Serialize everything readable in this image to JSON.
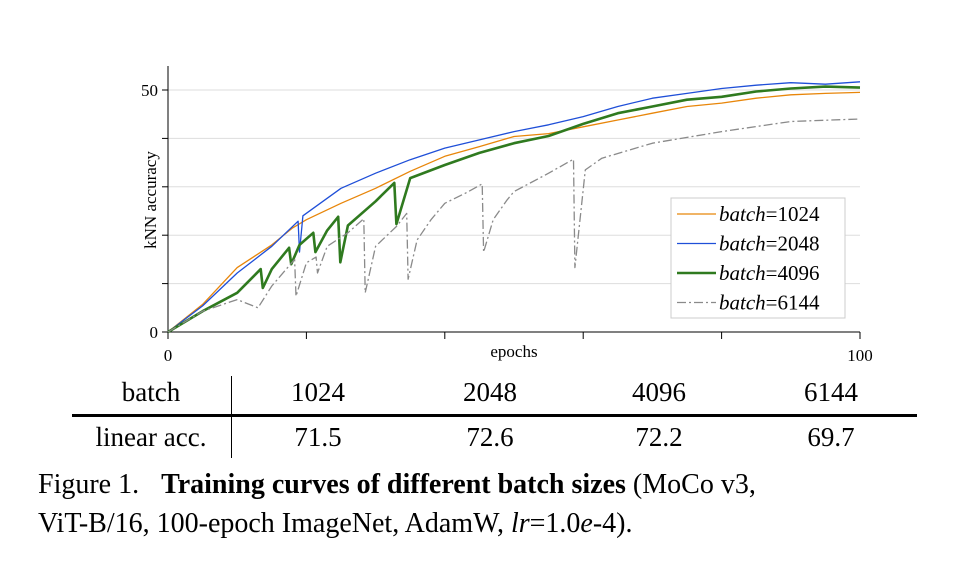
{
  "chart_data": {
    "type": "line",
    "xlabel": "epochs",
    "ylabel": "kNN accuracy",
    "xlim": [
      0,
      100
    ],
    "ylim": [
      0,
      55
    ],
    "x_tick_labels": [
      "0",
      "100"
    ],
    "x_ticks": [
      0,
      20,
      40,
      60,
      80,
      100
    ],
    "y_tick_labels": [
      "0",
      "50"
    ],
    "y_ticks": [
      0,
      10,
      20,
      30,
      40,
      50
    ],
    "grid": "horizontal",
    "legend_position": "lower-right",
    "series": [
      {
        "name": "batch=1024",
        "legend_italic": "batch",
        "legend_value": "=1024",
        "color": "#e8860a",
        "width": 1.3,
        "dash": "",
        "x": [
          0,
          5,
          10,
          15,
          18,
          20,
          25,
          30,
          35,
          40,
          45,
          50,
          55,
          60,
          65,
          70,
          75,
          80,
          85,
          90,
          95,
          100
        ],
        "y": [
          0,
          5.7,
          13.3,
          18,
          21.5,
          23.2,
          26.6,
          29.7,
          33.2,
          36.3,
          38.3,
          40.4,
          41,
          42.4,
          43.8,
          45.2,
          46.6,
          47.3,
          48.3,
          49,
          49.3,
          49.5
        ]
      },
      {
        "name": "batch=2048",
        "legend_italic": "batch",
        "legend_value": "=2048",
        "color": "#1f4fd8",
        "width": 1.3,
        "dash": "",
        "x": [
          0,
          5,
          10,
          15,
          18.8,
          19,
          19.5,
          22,
          25,
          30,
          35,
          40,
          45,
          50,
          55,
          60,
          65,
          70,
          75,
          80,
          85,
          90,
          95,
          100
        ],
        "y": [
          0,
          5.4,
          12.2,
          17.7,
          22.9,
          16.5,
          24,
          26.6,
          29.7,
          32.8,
          35.6,
          38,
          39.7,
          41.4,
          42.8,
          44.5,
          46.6,
          48.3,
          49.3,
          50.3,
          51,
          51.5,
          51.2,
          51.7
        ]
      },
      {
        "name": "batch=4096",
        "legend_italic": "batch",
        "legend_value": "=4096",
        "color": "#2f7a1f",
        "width": 2.6,
        "dash": "",
        "x": [
          0,
          5,
          10,
          13.4,
          13.7,
          15,
          17.5,
          17.8,
          19,
          21,
          21.3,
          23,
          24.6,
          24.9,
          26,
          30,
          32.7,
          33,
          35,
          40,
          45,
          50,
          55,
          60,
          65,
          70,
          75,
          80,
          85,
          90,
          95,
          100
        ],
        "y": [
          0,
          4.3,
          8.1,
          13,
          9.1,
          13,
          17.4,
          14,
          18,
          20.5,
          16.5,
          21,
          23.8,
          14.4,
          22,
          27,
          30.8,
          22.3,
          31.8,
          34.5,
          37,
          39,
          40.5,
          43,
          45.2,
          46.6,
          48,
          48.6,
          49.7,
          50.3,
          50.7,
          50.5
        ]
      },
      {
        "name": "batch=6144",
        "legend_italic": "batch",
        "legend_value": "=6144",
        "color": "#8a8a8a",
        "width": 1.3,
        "dash": "9 3 2 3",
        "x": [
          0,
          5,
          10,
          13,
          15,
          18.3,
          18.5,
          20,
          21.4,
          21.6,
          23,
          26,
          28.3,
          28.5,
          30,
          33,
          34.5,
          34.7,
          36,
          38,
          40,
          43,
          45.4,
          45.6,
          47,
          49,
          50,
          55,
          58.6,
          58.8,
          60.3,
          62.7,
          70,
          80,
          90,
          100
        ],
        "y": [
          0,
          4.3,
          6.7,
          5,
          9.5,
          15,
          7.4,
          14.3,
          15.5,
          12.2,
          17.7,
          20.5,
          23.4,
          8.1,
          17.7,
          21.8,
          24.5,
          10.9,
          19,
          23.2,
          26.6,
          28.7,
          30.6,
          16.5,
          23.2,
          27.3,
          29,
          32.8,
          35.7,
          13.3,
          33.5,
          35.9,
          39,
          41.4,
          43.5,
          44
        ]
      }
    ]
  },
  "table": {
    "header": {
      "label": "batch",
      "values": [
        "1024",
        "2048",
        "4096",
        "6144"
      ]
    },
    "row": {
      "label": "linear acc.",
      "values": [
        "71.5",
        "72.6",
        "72.2",
        "69.7"
      ]
    }
  },
  "caption": {
    "label": "Figure 1.",
    "bold": "Training curves of different batch sizes",
    "rest1": " (MoCo v3,",
    "line2a": "ViT-B/16, 100-epoch ImageNet, AdamW, ",
    "lr": "lr",
    "eq": "=1.0",
    "e": "e",
    "end": "-4)."
  }
}
